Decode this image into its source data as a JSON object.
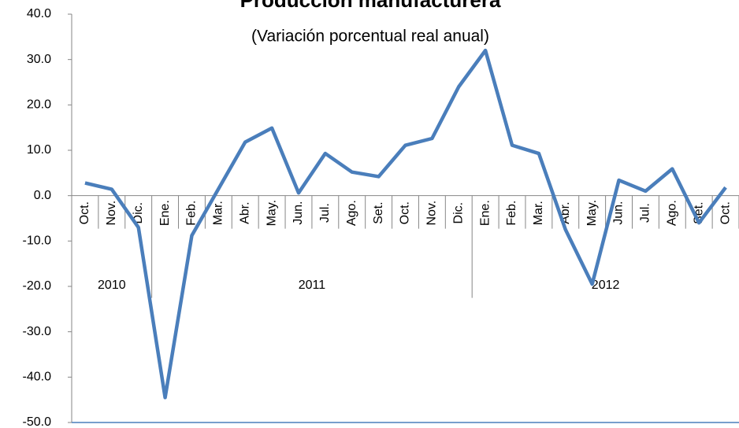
{
  "chart_data": {
    "type": "line",
    "title": "Producción manufacturera",
    "subtitle": "(Variación porcentual real anual)",
    "categories": [
      "Oct.",
      "Nov.",
      "Dic.",
      "Ene.",
      "Feb.",
      "Mar.",
      "Abr.",
      "May.",
      "Jun.",
      "Jul.",
      "Ago.",
      "Set.",
      "Oct.",
      "Nov.",
      "Dic.",
      "Ene.",
      "Feb.",
      "Mar.",
      "Abr.",
      "May.",
      "Jun.",
      "Jul.",
      "Ago.",
      "Set.",
      "Oct."
    ],
    "year_labels": [
      "2010",
      "2011",
      "2012"
    ],
    "series": [
      {
        "name": "Producción manufacturera",
        "color": "#4a7ebb",
        "values": [
          2.8,
          1.4,
          -7,
          -44.5,
          -8.8,
          1.5,
          11.8,
          14.9,
          0.6,
          9.3,
          5.2,
          4.2,
          11.1,
          12.6,
          24,
          32,
          11.1,
          9.3,
          -7.5,
          -19.5,
          3.4,
          1.0,
          5.9,
          -6,
          1.8
        ]
      }
    ],
    "ylim": [
      -50,
      40
    ],
    "yticks": [
      {
        "value": -50,
        "label": "-50.0"
      },
      {
        "value": -40,
        "label": "-40.0"
      },
      {
        "value": -30,
        "label": "-30.0"
      },
      {
        "value": -20,
        "label": "-20.0"
      },
      {
        "value": -10,
        "label": "-10.0"
      },
      {
        "value": 0,
        "label": "0.0"
      },
      {
        "value": 10,
        "label": "10.0"
      },
      {
        "value": 20,
        "label": "20.0"
      },
      {
        "value": 30,
        "label": "30.0"
      },
      {
        "value": 40,
        "label": "40.0"
      }
    ],
    "grid": false
  }
}
